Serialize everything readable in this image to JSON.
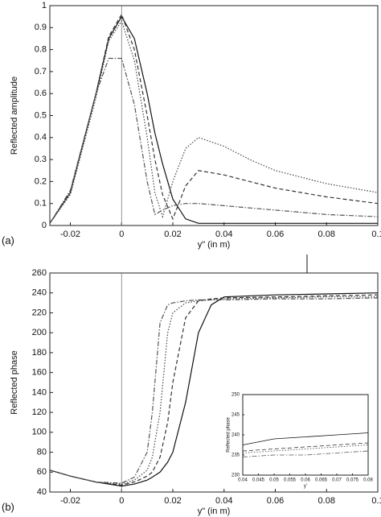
{
  "chart_data": [
    {
      "type": "line",
      "label": "(a)",
      "ylabel": "Reflected amplitude",
      "xlabel": "y\" (in m)",
      "xlim": [
        -0.028,
        0.1
      ],
      "xticks": [
        -0.02,
        0,
        0.02,
        0.04,
        0.06,
        0.08,
        0.1
      ],
      "ylim": [
        0,
        1
      ],
      "yticks": [
        0,
        0.1,
        0.2,
        0.3,
        0.4,
        0.5,
        0.6,
        0.7,
        0.8,
        0.9,
        1
      ],
      "vline": 0,
      "x": [
        -0.028,
        -0.02,
        -0.01,
        -0.005,
        0,
        0.005,
        0.01,
        0.013,
        0.016,
        0.02,
        0.025,
        0.03,
        0.04,
        0.05,
        0.06,
        0.08,
        0.1
      ],
      "series": [
        {
          "color": "#111",
          "style": "solid",
          "values": [
            0.01,
            0.15,
            0.6,
            0.85,
            0.95,
            0.85,
            0.6,
            0.42,
            0.28,
            0.12,
            0.03,
            0.01,
            0.01,
            0.01,
            0.01,
            0.01,
            0.01
          ]
        },
        {
          "color": "#333",
          "style": "dashed",
          "values": [
            0.01,
            0.15,
            0.6,
            0.86,
            0.96,
            0.8,
            0.5,
            0.3,
            0.14,
            0.03,
            0.18,
            0.25,
            0.23,
            0.2,
            0.17,
            0.13,
            0.1
          ]
        },
        {
          "color": "#444",
          "style": "dotted",
          "values": [
            0.01,
            0.14,
            0.58,
            0.84,
            0.93,
            0.75,
            0.4,
            0.15,
            0.04,
            0.2,
            0.35,
            0.4,
            0.36,
            0.3,
            0.25,
            0.19,
            0.15
          ]
        },
        {
          "color": "#555",
          "style": "dashdot",
          "values": [
            0.01,
            0.16,
            0.6,
            0.76,
            0.76,
            0.55,
            0.2,
            0.05,
            0.07,
            0.09,
            0.1,
            0.1,
            0.09,
            0.08,
            0.07,
            0.05,
            0.04
          ]
        }
      ]
    },
    {
      "type": "line",
      "label": "(b)",
      "ylabel": "Reflected phase",
      "xlabel": "y\" (in m)",
      "xlim": [
        -0.028,
        0.1
      ],
      "xticks": [
        -0.02,
        0,
        0.02,
        0.04,
        0.06,
        0.08,
        0.1
      ],
      "ylim": [
        40,
        260
      ],
      "yticks": [
        40,
        60,
        80,
        100,
        120,
        140,
        160,
        180,
        200,
        220,
        240,
        260
      ],
      "vline": 0,
      "x": [
        -0.028,
        -0.02,
        -0.01,
        0,
        0.005,
        0.01,
        0.012,
        0.015,
        0.018,
        0.02,
        0.025,
        0.03,
        0.035,
        0.04,
        0.06,
        0.08,
        0.1
      ],
      "series": [
        {
          "color": "#111",
          "style": "solid",
          "values": [
            62,
            56,
            50,
            46,
            48,
            52,
            55,
            60,
            70,
            80,
            130,
            200,
            228,
            236,
            238,
            239,
            240
          ]
        },
        {
          "color": "#333",
          "style": "dashed",
          "values": [
            62,
            56,
            50,
            47,
            50,
            56,
            60,
            75,
            110,
            150,
            215,
            232,
            234,
            235,
            236,
            237,
            238
          ]
        },
        {
          "color": "#444",
          "style": "dotted",
          "values": [
            62,
            56,
            50,
            48,
            52,
            62,
            75,
            120,
            200,
            220,
            230,
            232,
            233,
            234,
            235,
            236,
            236
          ]
        },
        {
          "color": "#555",
          "style": "dashdot",
          "values": [
            62,
            56,
            50,
            49,
            55,
            80,
            120,
            210,
            228,
            230,
            232,
            233,
            233,
            233,
            234,
            234,
            235
          ]
        }
      ]
    },
    {
      "type": "line",
      "ylabel": "Reflected phase",
      "xlabel": "y'",
      "xlim": [
        0.04,
        0.08
      ],
      "xticks": [
        0.04,
        0.045,
        0.05,
        0.055,
        0.06,
        0.065,
        0.07,
        0.075,
        0.08
      ],
      "ylim": [
        230,
        250
      ],
      "yticks": [
        230,
        235,
        240,
        245,
        250
      ],
      "x": [
        0.04,
        0.05,
        0.06,
        0.07,
        0.08
      ],
      "series": [
        {
          "color": "#111",
          "style": "solid",
          "values": [
            237.5,
            239,
            239.5,
            240,
            240.5
          ]
        },
        {
          "color": "#333",
          "style": "dashed",
          "values": [
            236,
            236.5,
            237,
            237.5,
            238
          ]
        },
        {
          "color": "#444",
          "style": "dotted",
          "values": [
            235.5,
            236,
            236.5,
            237,
            237.5
          ]
        },
        {
          "color": "#555",
          "style": "dashdot",
          "values": [
            234.5,
            235,
            235,
            235.5,
            236
          ]
        }
      ]
    }
  ]
}
